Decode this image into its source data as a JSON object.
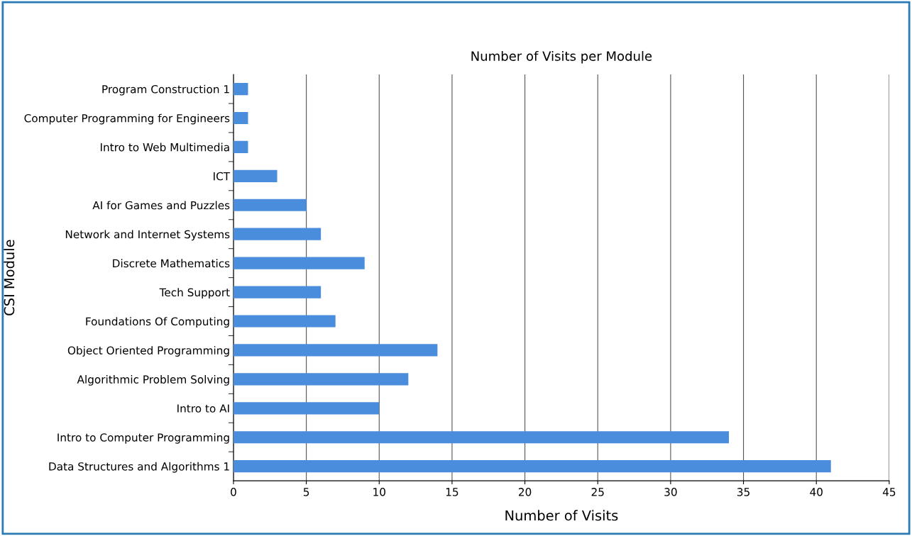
{
  "chart_data": {
    "type": "bar",
    "orientation": "horizontal",
    "title": "Number of Visits per Module",
    "xlabel": "Number of Visits",
    "ylabel": "CSI Module",
    "categories": [
      "Program Construction 1",
      "Computer Programming for Engineers",
      "Intro to Web Multimedia",
      "ICT",
      "AI for Games and Puzzles",
      "Network and Internet Systems",
      "Discrete Mathematics",
      "Tech Support",
      "Foundations Of Computing",
      "Object Oriented Programming",
      "Algorithmic Problem Solving",
      "Intro to AI",
      "Intro to Computer Programming",
      "Data Structures and Algorithms 1"
    ],
    "values": [
      1,
      1,
      1,
      3,
      5,
      6,
      9,
      6,
      7,
      14,
      12,
      10,
      34,
      41
    ],
    "color": "#4a8ddc",
    "xlim": [
      0,
      45
    ],
    "xticks": [
      0,
      5,
      10,
      15,
      20,
      25,
      30,
      35,
      40,
      45
    ],
    "grid": "x"
  }
}
